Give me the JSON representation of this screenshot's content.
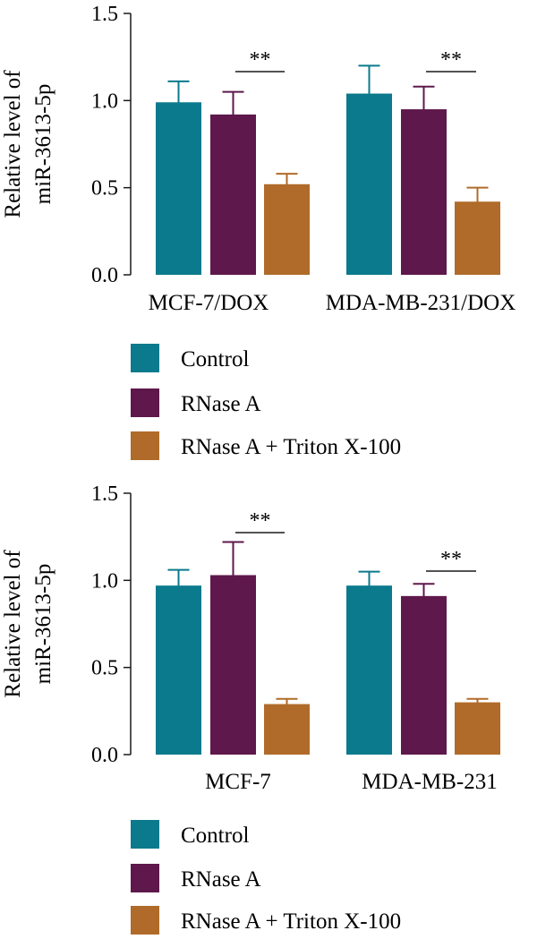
{
  "colors": {
    "Control": "#0b7a8c",
    "RNase A": "#5e184b",
    "RNase A + Triton X-100": "#b06b2a"
  },
  "chart_data": [
    {
      "type": "bar",
      "ylabel": [
        "Relative level of",
        "miR-3613-5p"
      ],
      "ylim": [
        0,
        1.5
      ],
      "yticks": [
        "0.0",
        "0.5",
        "1.0",
        "1.5"
      ],
      "categories": [
        "MCF-7/DOX",
        "MDA-MB-231/DOX"
      ],
      "series": [
        {
          "name": "Control",
          "values": [
            0.99,
            1.04
          ],
          "errors": [
            0.12,
            0.16
          ]
        },
        {
          "name": "RNase A",
          "values": [
            0.92,
            0.95
          ],
          "errors": [
            0.13,
            0.13
          ]
        },
        {
          "name": "RNase A + Triton X-100",
          "values": [
            0.52,
            0.42
          ],
          "errors": [
            0.06,
            0.08
          ]
        }
      ],
      "significance": [
        {
          "category": "MCF-7/DOX",
          "label": "**"
        },
        {
          "category": "MDA-MB-231/DOX",
          "label": "**"
        }
      ],
      "legend": [
        "Control",
        "RNase A",
        "RNase A + Triton X-100"
      ]
    },
    {
      "type": "bar",
      "ylabel": [
        "Relative level of",
        "miR-3613-5p"
      ],
      "ylim": [
        0,
        1.5
      ],
      "yticks": [
        "0.0",
        "0.5",
        "1.0",
        "1.5"
      ],
      "categories": [
        "MCF-7",
        "MDA-MB-231"
      ],
      "series": [
        {
          "name": "Control",
          "values": [
            0.97,
            0.97
          ],
          "errors": [
            0.09,
            0.08
          ]
        },
        {
          "name": "RNase A",
          "values": [
            1.03,
            0.91
          ],
          "errors": [
            0.19,
            0.07
          ]
        },
        {
          "name": "RNase A + Triton X-100",
          "values": [
            0.29,
            0.3
          ],
          "errors": [
            0.03,
            0.02
          ]
        }
      ],
      "significance": [
        {
          "category": "MCF-7",
          "label": "**"
        },
        {
          "category": "MDA-MB-231",
          "label": "**"
        }
      ],
      "legend": [
        "Control",
        "RNase A",
        "RNase A + Triton X-100"
      ]
    }
  ]
}
